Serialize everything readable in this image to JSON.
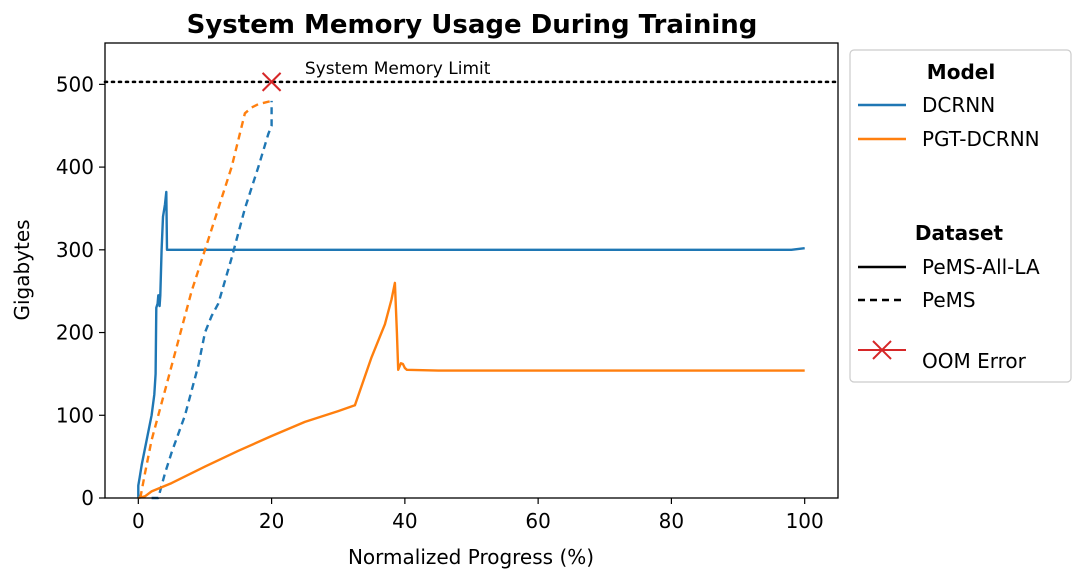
{
  "chart_data": {
    "type": "line",
    "title": "System Memory Usage During Training",
    "xlabel": "Normalized Progress (%)",
    "ylabel": "Gigabytes",
    "xlim": [
      -5,
      105
    ],
    "ylim": [
      0,
      550
    ],
    "xticks": [
      0,
      20,
      40,
      60,
      80,
      100
    ],
    "yticks": [
      0,
      100,
      200,
      300,
      400,
      500
    ],
    "grid": false,
    "legend_placement": "outside-right",
    "reference_line": {
      "label": "System Memory Limit",
      "y": 503,
      "style": "dotted",
      "color": "#000000"
    },
    "oom_marker": {
      "x": 20,
      "y": 503,
      "color": "#d62728"
    },
    "series": [
      {
        "model": "DCRNN",
        "dataset": "PeMS-All-LA",
        "color": "#1f77b4",
        "dash": "solid",
        "points": [
          [
            0,
            0
          ],
          [
            0,
            15
          ],
          [
            0.2,
            25
          ],
          [
            0.5,
            40
          ],
          [
            1,
            60
          ],
          [
            2,
            100
          ],
          [
            2.4,
            125
          ],
          [
            2.6,
            150
          ],
          [
            2.7,
            230
          ],
          [
            2.9,
            235
          ],
          [
            3,
            245
          ],
          [
            3.1,
            245
          ],
          [
            3.2,
            232
          ],
          [
            3.3,
            245
          ],
          [
            3.5,
            300
          ],
          [
            3.7,
            340
          ],
          [
            4,
            355
          ],
          [
            4.2,
            370
          ],
          [
            4.3,
            300
          ],
          [
            5,
            300
          ],
          [
            20,
            300
          ],
          [
            40,
            300
          ],
          [
            60,
            300
          ],
          [
            80,
            300
          ],
          [
            98,
            300
          ],
          [
            100,
            302
          ]
        ]
      },
      {
        "model": "DCRNN",
        "dataset": "PeMS",
        "color": "#1f77b4",
        "dash": "dashed",
        "points": [
          [
            2,
            0
          ],
          [
            3,
            0
          ],
          [
            3.5,
            15
          ],
          [
            4,
            30
          ],
          [
            5,
            55
          ],
          [
            7,
            100
          ],
          [
            9,
            160
          ],
          [
            10,
            200
          ],
          [
            11,
            220
          ],
          [
            12,
            235
          ],
          [
            14,
            290
          ],
          [
            16,
            350
          ],
          [
            18,
            400
          ],
          [
            19.5,
            440
          ],
          [
            20,
            450
          ],
          [
            20,
            480
          ]
        ]
      },
      {
        "model": "PGT-DCRNN",
        "dataset": "PeMS-All-LA",
        "color": "#ff7f0e",
        "dash": "solid",
        "points": [
          [
            0,
            0
          ],
          [
            1,
            2
          ],
          [
            2,
            8
          ],
          [
            5,
            18
          ],
          [
            10,
            38
          ],
          [
            15,
            57
          ],
          [
            20,
            75
          ],
          [
            25,
            92
          ],
          [
            30,
            105
          ],
          [
            32.5,
            112
          ],
          [
            35,
            170
          ],
          [
            37,
            210
          ],
          [
            38,
            240
          ],
          [
            38.5,
            260
          ],
          [
            38.8,
            200
          ],
          [
            39,
            155
          ],
          [
            39.4,
            163
          ],
          [
            39.7,
            162
          ],
          [
            40,
            157
          ],
          [
            40.3,
            155
          ],
          [
            45,
            154
          ],
          [
            60,
            154
          ],
          [
            80,
            154
          ],
          [
            100,
            154
          ]
        ]
      },
      {
        "model": "PGT-DCRNN",
        "dataset": "PeMS",
        "color": "#ff7f0e",
        "dash": "dashed",
        "points": [
          [
            0.3,
            0
          ],
          [
            1,
            30
          ],
          [
            2,
            70
          ],
          [
            4,
            130
          ],
          [
            6,
            190
          ],
          [
            8,
            250
          ],
          [
            10,
            300
          ],
          [
            12,
            350
          ],
          [
            14,
            400
          ],
          [
            16,
            465
          ],
          [
            17,
            472
          ],
          [
            18,
            476
          ],
          [
            19,
            478
          ],
          [
            20,
            480
          ]
        ]
      }
    ],
    "legend": {
      "model_heading": "Model",
      "models": [
        {
          "label": "DCRNN",
          "color": "#1f77b4"
        },
        {
          "label": "PGT-DCRNN",
          "color": "#ff7f0e"
        }
      ],
      "dataset_heading": "Dataset",
      "datasets": [
        {
          "label": "PeMS-All-LA",
          "dash": "solid"
        },
        {
          "label": "PeMS",
          "dash": "dashed"
        }
      ],
      "oom_label": "OOM Error"
    }
  }
}
